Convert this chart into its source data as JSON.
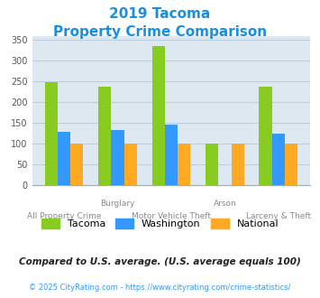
{
  "title_line1": "2019 Tacoma",
  "title_line2": "Property Crime Comparison",
  "title_color": "#1a8fe0",
  "x_labels_top": [
    "",
    "Burglary",
    "",
    "Arson",
    ""
  ],
  "x_labels_bottom": [
    "All Property Crime",
    "",
    "Motor Vehicle Theft",
    "",
    "Larceny & Theft"
  ],
  "tacoma": [
    248,
    238,
    336,
    100,
    238
  ],
  "washington": [
    128,
    133,
    146,
    0,
    124
  ],
  "national": [
    100,
    100,
    100,
    100,
    100
  ],
  "tacoma_color": "#88cc22",
  "washington_color": "#3399ff",
  "national_color": "#ffaa22",
  "ylim": [
    0,
    360
  ],
  "yticks": [
    0,
    50,
    100,
    150,
    200,
    250,
    300,
    350
  ],
  "grid_color": "#bbccdd",
  "bg_color": "#dde8f0",
  "footer_text1": "Compared to U.S. average. (U.S. average equals 100)",
  "footer_text2": "© 2025 CityRating.com - https://www.cityrating.com/crime-statistics/",
  "footer_color1": "#222222",
  "footer_color2": "#3399ff"
}
